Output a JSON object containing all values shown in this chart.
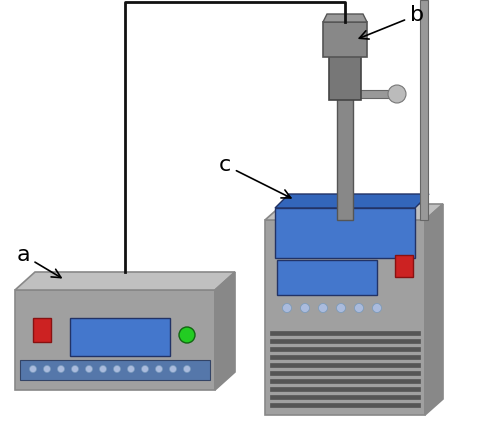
{
  "background_color": "#ffffff",
  "label_a": "a",
  "label_b": "b",
  "label_c": "c",
  "body_color": "#a0a0a0",
  "body_dark": "#888888",
  "body_light": "#c0c0c0",
  "body_shadow": "#707070",
  "blue_screen": "#4477cc",
  "blue_screen_light": "#6699ee",
  "blue_top": "#3366bb",
  "red_button": "#cc2222",
  "green_button": "#22cc22",
  "wire_color": "#111111",
  "dot_color": "#aabbdd",
  "vent_color": "#555555",
  "probe_body": "#777777",
  "probe_dark": "#555555",
  "probe_tip": "#999999"
}
